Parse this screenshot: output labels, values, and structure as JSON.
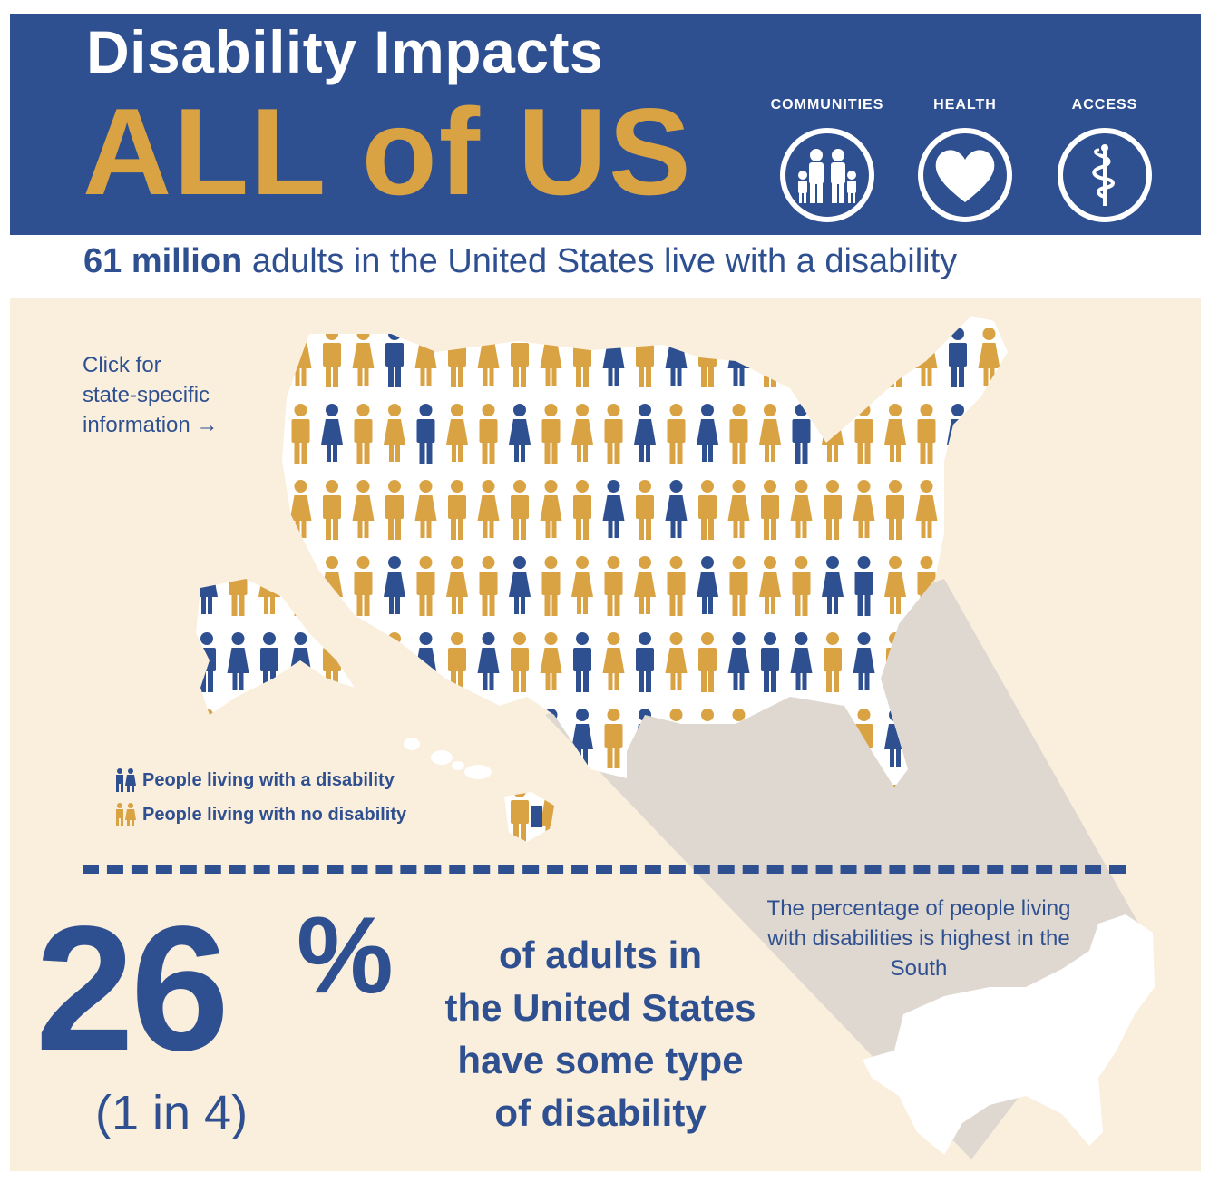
{
  "header": {
    "title_line1": "Disability Impacts",
    "title_line2": "ALL of US",
    "icons": [
      {
        "label": "COMMUNITIES",
        "icon": "family-icon"
      },
      {
        "label": "HEALTH",
        "icon": "heart-icon"
      },
      {
        "label": "ACCESS",
        "icon": "caduceus-icon"
      }
    ]
  },
  "subtitle": {
    "bold": "61 million",
    "rest": " adults in the United States live with a disability"
  },
  "map": {
    "click_note_lines": [
      "Click for",
      "state-specific",
      "information →"
    ]
  },
  "legend": {
    "disability": "People living with a disability",
    "no_disability": "People living with no disability"
  },
  "stat": {
    "percent": "26",
    "percent_sign": "%",
    "ratio": "(1 in 4)",
    "description_lines": [
      "of adults in",
      "the United States",
      "have some type",
      "of disability"
    ]
  },
  "south_note": "The percentage of people living with disabilities is highest in the South",
  "colors": {
    "navy": "#2f5090",
    "gold": "#d9a243",
    "panel_bg": "#faeedd"
  }
}
